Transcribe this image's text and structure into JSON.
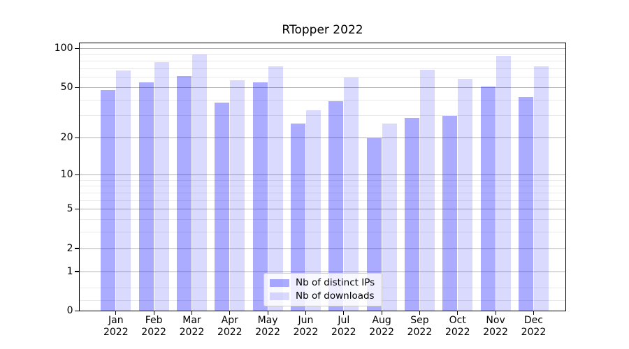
{
  "chart_data": {
    "type": "bar",
    "title": "RTopper 2022",
    "categories": [
      "Jan",
      "Feb",
      "Mar",
      "Apr",
      "May",
      "Jun",
      "Jul",
      "Aug",
      "Sep",
      "Oct",
      "Nov",
      "Dec"
    ],
    "category_year": "2022",
    "series": [
      {
        "name": "Nb of distinct IPs",
        "color": "#0000ff",
        "alpha": 0.33,
        "values": [
          48,
          55,
          61,
          38,
          55,
          26,
          39,
          20,
          29,
          30,
          51,
          42
        ]
      },
      {
        "name": "Nb of downloads",
        "color": "#0000ff",
        "alpha": 0.145,
        "values": [
          68,
          79,
          90,
          57,
          73,
          33,
          60,
          26,
          69,
          58,
          88,
          73
        ]
      }
    ],
    "xlabel": "",
    "ylabel": "",
    "yscale": "log1p",
    "yticks": [
      0,
      1,
      2,
      5,
      10,
      20,
      50,
      100
    ],
    "y_minor_ticks": [
      0.2,
      0.5,
      3,
      4,
      6,
      7,
      8,
      9,
      30,
      40,
      60,
      70,
      80,
      90
    ],
    "ylim": [
      0,
      112
    ],
    "grid": true,
    "legend_position": "lower center",
    "colors": {
      "major_grid": "#b2b2b2",
      "minor_grid": "#e9e9e9",
      "axis": "#000000",
      "legend_border": "#cccccc"
    }
  }
}
